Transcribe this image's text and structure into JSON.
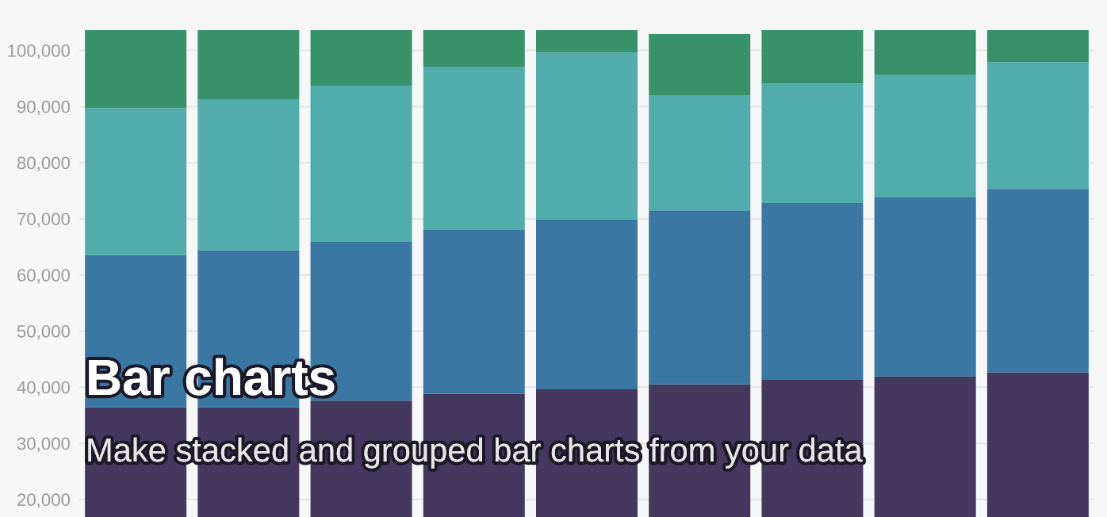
{
  "chart_data": {
    "type": "bar",
    "title": "Bar charts",
    "subtitle": "Make stacked and grouped bar charts from your data",
    "categories": [
      null,
      null,
      null,
      null,
      null,
      null,
      null,
      null,
      null
    ],
    "stacked": true,
    "series": [
      {
        "color": "#45385f",
        "values": [
          36400,
          36400,
          37600,
          38800,
          39600,
          40500,
          41400,
          41900,
          42600
        ]
      },
      {
        "color": "#3a77a3",
        "values": [
          27100,
          28000,
          28400,
          29300,
          30300,
          31000,
          31400,
          31900,
          32700
        ]
      },
      {
        "color": "#50adab",
        "values": [
          26200,
          26800,
          27700,
          28900,
          29700,
          20500,
          21300,
          21900,
          22600
        ]
      },
      {
        "color": "#37916a",
        "values": [
          13900,
          12400,
          9900,
          6600,
          4000,
          10900,
          9500,
          7900,
          5700
        ]
      }
    ],
    "ylim": [
      0,
      103600
    ],
    "yticks": [
      {
        "value": 20000,
        "label": "20,000"
      },
      {
        "value": 30000,
        "label": "30,000"
      },
      {
        "value": 40000,
        "label": "40,000"
      },
      {
        "value": 50000,
        "label": "50,000"
      },
      {
        "value": 60000,
        "label": "60,000"
      },
      {
        "value": 70000,
        "label": "70,000"
      },
      {
        "value": 80000,
        "label": "80,000"
      },
      {
        "value": 90000,
        "label": "90,000"
      },
      {
        "value": 100000,
        "label": "100,000"
      }
    ],
    "grid": "y",
    "tick_labels": "y"
  }
}
